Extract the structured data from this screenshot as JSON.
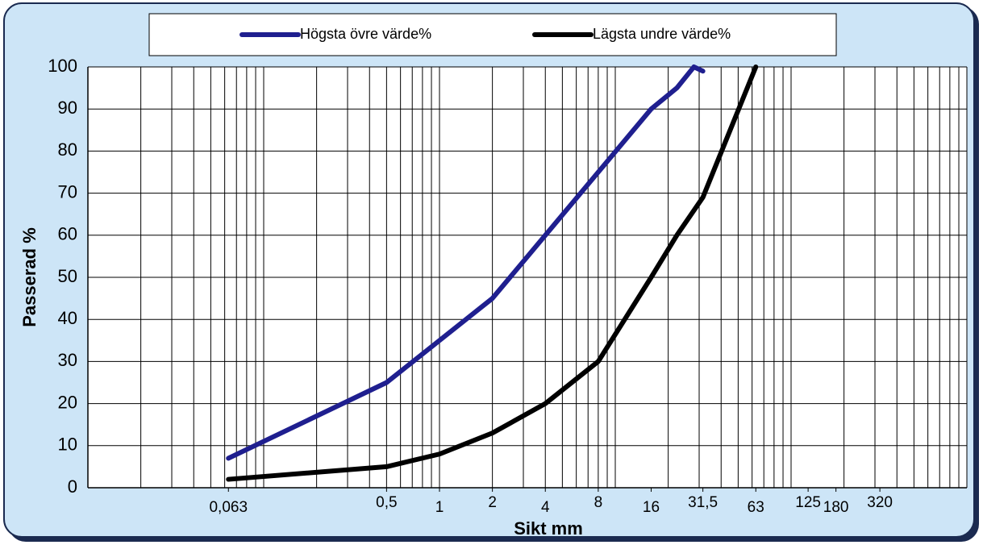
{
  "chart_data": {
    "type": "line",
    "xlabel": "Sikt mm",
    "ylabel": "Passerad %",
    "xscale": "log",
    "xlim": [
      0.01,
      1000
    ],
    "ylim": [
      0,
      100
    ],
    "yticks": [
      0,
      10,
      20,
      30,
      40,
      50,
      60,
      70,
      80,
      90,
      100
    ],
    "xticks": [
      {
        "value": 0.063,
        "label": "0,063"
      },
      {
        "value": 0.5,
        "label": "0,5"
      },
      1,
      2,
      4,
      8,
      16,
      {
        "value": 31.5,
        "label": "31,5"
      },
      63,
      125,
      180,
      320
    ],
    "grid": true,
    "legend": "top",
    "series": [
      {
        "name": "Högsta övre värde%",
        "color": "#1f1f8f",
        "x": [
          0.063,
          0.5,
          1,
          2,
          4,
          8,
          16,
          22.4,
          28,
          31.5
        ],
        "values": [
          7,
          25,
          35,
          45,
          60,
          75,
          90,
          95,
          100,
          99
        ]
      },
      {
        "name": "Lägsta undre värde%",
        "color": "#000000",
        "x": [
          0.063,
          0.5,
          1,
          2,
          4,
          8,
          16,
          22.4,
          31.5,
          63
        ],
        "values": [
          2,
          5,
          8,
          13,
          20,
          30,
          50,
          60,
          69,
          100
        ]
      }
    ]
  }
}
